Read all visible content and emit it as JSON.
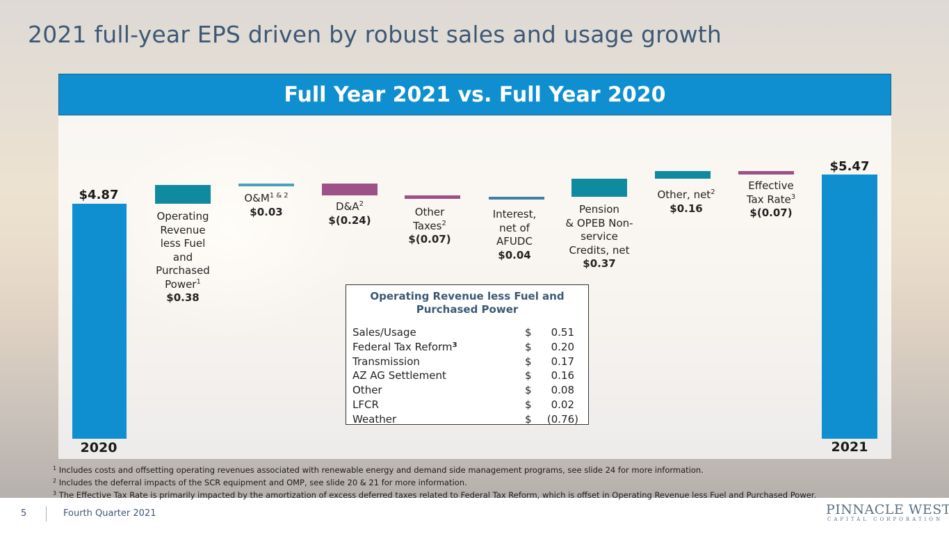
{
  "slide": {
    "title": "2021 full-year EPS driven by robust sales and usage growth",
    "page_number": "5",
    "footer_text": "Fourth Quarter 2021",
    "logo_main": "PINNACLE WEST",
    "logo_sub": "CAPITAL CORPORATION"
  },
  "chart_data": {
    "type": "bar",
    "subtype": "waterfall",
    "title": "Full Year 2021 vs. Full Year 2020",
    "start": {
      "label": "2020",
      "value_label": "$4.87",
      "value": 4.87
    },
    "end": {
      "label": "2021",
      "value_label": "$5.47",
      "value": 5.47
    },
    "steps": [
      {
        "name": "Operating Revenue less Fuel and Purchased Power",
        "sup": "1",
        "value": 0.38,
        "value_label": "$0.38"
      },
      {
        "name": "O&M",
        "sup": "1 & 2",
        "value": 0.03,
        "value_label": "$0.03"
      },
      {
        "name": "D&A",
        "sup": "2",
        "value": -0.24,
        "value_label": "$(0.24)"
      },
      {
        "name": "Other Taxes",
        "sup": "2",
        "value": -0.07,
        "value_label": "$(0.07)"
      },
      {
        "name": "Interest, net of AFUDC",
        "sup": "",
        "value": 0.04,
        "value_label": "$0.04"
      },
      {
        "name": "Pension & OPEB Non-service Credits, net",
        "sup": "",
        "value": 0.37,
        "value_label": "$0.37"
      },
      {
        "name": "Other, net",
        "sup": "2",
        "value": 0.16,
        "value_label": "$0.16"
      },
      {
        "name": "Effective Tax Rate",
        "sup": "3",
        "value": -0.07,
        "value_label": "$(0.07)"
      }
    ],
    "colors": {
      "total": "#0f8fcf",
      "positive": "#108a9e",
      "negative": "#9c5187",
      "interest": "#3f80a8",
      "om": "#4aa3b5"
    }
  },
  "labels": {
    "oprev": [
      "Operating",
      "Revenue",
      "less Fuel",
      "and",
      "Purchased",
      "Power"
    ],
    "om": "O&M",
    "da": "D&A",
    "othertax": [
      "Other",
      "Taxes"
    ],
    "interest": [
      "Interest,",
      "net of",
      "AFUDC"
    ],
    "pension": [
      "Pension",
      "& OPEB Non-",
      "service",
      "Credits, net"
    ],
    "othernet": "Other, net",
    "etr": [
      "Effective",
      "Tax Rate"
    ]
  },
  "breakdown": {
    "title": "Operating Revenue less Fuel and Purchased Power",
    "rows": [
      {
        "name": "Sales/Usage",
        "sup": "",
        "currency": "$",
        "amount": "0.51"
      },
      {
        "name": "Federal Tax Reform",
        "sup": "3",
        "currency": "$",
        "amount": "0.20"
      },
      {
        "name": "Transmission",
        "sup": "",
        "currency": "$",
        "amount": "0.17"
      },
      {
        "name": "AZ AG Settlement",
        "sup": "",
        "currency": "$",
        "amount": "0.16"
      },
      {
        "name": "Other",
        "sup": "",
        "currency": "$",
        "amount": "0.08"
      },
      {
        "name": "LFCR",
        "sup": "",
        "currency": "$",
        "amount": "0.02"
      },
      {
        "name": "Weather",
        "sup": "",
        "currency": "$",
        "amount": "(0.76)"
      }
    ]
  },
  "footnotes": [
    {
      "num": "1",
      "text": "Includes costs and offsetting operating revenues associated with renewable energy and demand side management programs, see slide 24 for more information."
    },
    {
      "num": "2",
      "text": "Includes the deferral impacts of the SCR equipment and OMP, see slide 20 & 21 for more information."
    },
    {
      "num": "3",
      "text": "The Effective Tax Rate is primarily impacted by the amortization of excess deferred taxes related to Federal Tax Reform, which is offset in Operating Revenue less Fuel and Purchased Power."
    }
  ]
}
